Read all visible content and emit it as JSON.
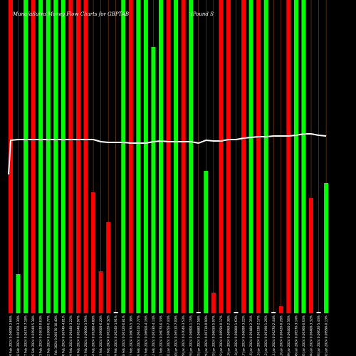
{
  "chart_data": {
    "type": "bar",
    "title_left": "MunafaSutra Money Flow Charts for GBPTAB",
    "title_right": "(Pound S",
    "ylim": [
      0,
      440
    ],
    "categories": [
      "29 Feb 2024 0.06000-2.66%",
      "28 Feb 2024 0.06160-3.30%",
      "27 Feb 2024 0.06370-7.18%",
      "26 Feb 2024 0.05940-5.38%",
      "23 Feb 2024 0.05630-0.63%",
      "22 Feb 2024 0.05660-6.77%",
      "21 Feb 2024 0.06070-10.40%",
      "20 Feb 2024 0.06740-4.81%",
      "19 Feb 2024 0.06440-3.22%",
      "16 Feb 2024 0.06240-2.97%",
      "15 Feb 2024 0.06060-3.59%",
      "14 Feb 2024 0.06280-4.80%",
      "13 Feb 2024 0.06600-6.20%",
      "12 Feb 2024 0.06220-0.32%",
      "09 Feb 2024 0.06240-1.91%",
      "08 Feb 2024 0.06120-0.81%",
      "07 Feb 2024 0.06070-5.38%",
      "06 Feb 2024 0.06410-2.77%",
      "05 Feb 2024 0.06600-4.16%",
      "02 Feb 2024 0.06330-4.14%",
      "01 Feb 2024 0.06070-0.33%",
      "31 Jan 2024 0.06050-7.44%",
      "30 Jan 2024 0.06510-7.09%",
      "29 Jan 2024 0.07040-3.53%",
      "26 Jan 2024 0.06800-1.15%",
      "25 Jan 2024 0.06880-2.58%",
      "24 Jan 2024 0.06710-0.90%",
      "23 Jan 2024 0.06650-5.97%",
      "22 Jan 2024 0.06950-0.17%",
      "19 Jan 2024 0.06960-2.36%",
      "18 Jan 2024 0.06800-1.63%",
      "17 Jan 2024 0.06690-3.22%",
      "16 Jan 2024 0.06480-2.35%",
      "15 Jan 2024 0.06330-2.17%",
      "12 Jan 2024 0.06190-1.26%",
      "11 Jan 2024 0.06270-2.44%",
      "10 Jan 2024 0.06420-0.28%",
      "09 Jan 2024 0.06400-2.56%",
      "08 Jan 2024 0.06570-3.14%",
      "05 Jan 2024 0.06360-0.63%",
      "04 Jan 2024 0.06400-3.32%",
      "03 Jan 2024 0.06620-5.43%",
      "02 Jan 2024 0.06990-0.13%"
    ],
    "series": [
      {
        "values": [
          440,
          55,
          440,
          440,
          440,
          440,
          440,
          440,
          440,
          440,
          440,
          170,
          59,
          128,
          2,
          440,
          440,
          440,
          440,
          374,
          440,
          440,
          440,
          440,
          440,
          2,
          200,
          29,
          440,
          440,
          2,
          440,
          440,
          440,
          440,
          2,
          10,
          440,
          440,
          440,
          162,
          2,
          183
        ]
      }
    ],
    "bar_colors": [
      "red",
      "green",
      "green",
      "red",
      "green",
      "green",
      "green",
      "green",
      "red",
      "red",
      "red",
      "red",
      "red",
      "red",
      "white",
      "green",
      "red",
      "green",
      "green",
      "green",
      "green",
      "red",
      "green",
      "red",
      "green",
      "white",
      "green",
      "red",
      "red",
      "red",
      "white",
      "red",
      "green",
      "red",
      "green",
      "white",
      "red",
      "red",
      "green",
      "green",
      "red",
      "white",
      "green"
    ],
    "line_values": [
      243,
      244,
      244,
      244,
      244,
      244,
      244,
      244,
      244,
      244,
      244,
      244,
      241,
      240,
      240,
      240,
      239,
      239,
      239,
      241,
      242,
      241,
      241,
      241,
      241,
      239,
      243,
      242,
      242,
      244,
      244,
      246,
      247,
      248,
      248,
      249,
      249,
      249,
      250,
      252,
      252,
      250,
      249
    ],
    "colors": {
      "background": "#000000",
      "bull": "#00ff00",
      "bear": "#ff0000",
      "flat": "#ffffff",
      "line": "#ffffff",
      "gridline": "#8b4513"
    }
  }
}
